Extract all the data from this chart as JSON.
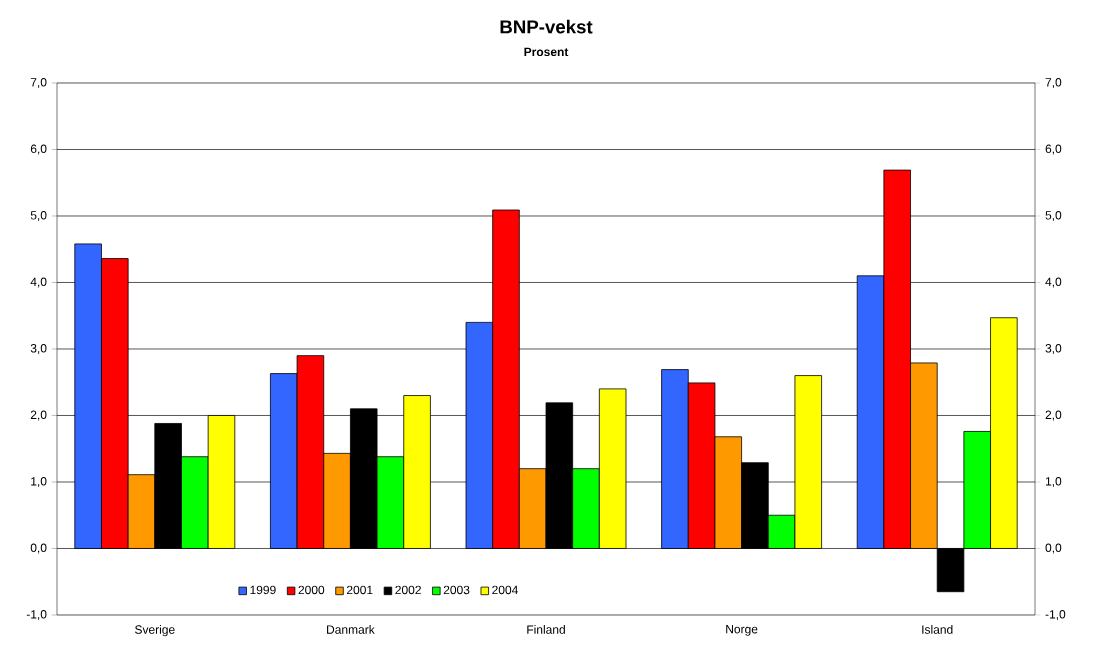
{
  "chart_data": {
    "type": "bar",
    "title": "BNP-vekst",
    "subtitle": "Prosent",
    "categories": [
      "Sverige",
      "Danmark",
      "Finland",
      "Norge",
      "Island"
    ],
    "series": [
      {
        "name": "1999",
        "color": "#3366ff",
        "values": [
          4.58,
          2.63,
          3.4,
          2.69,
          4.1
        ]
      },
      {
        "name": "2000",
        "color": "#ff0000",
        "values": [
          4.36,
          2.9,
          5.09,
          2.49,
          5.69
        ]
      },
      {
        "name": "2001",
        "color": "#ff9900",
        "values": [
          1.11,
          1.43,
          1.2,
          1.68,
          2.79
        ]
      },
      {
        "name": "2002",
        "color": "#000000",
        "values": [
          1.88,
          2.1,
          2.19,
          1.29,
          -0.65
        ]
      },
      {
        "name": "2003",
        "color": "#00ff00",
        "values": [
          1.38,
          1.38,
          1.2,
          0.5,
          1.76
        ]
      },
      {
        "name": "2004",
        "color": "#ffff00",
        "values": [
          2.0,
          2.3,
          2.4,
          2.6,
          3.47
        ]
      }
    ],
    "ylim": [
      -1,
      7
    ],
    "yticks": [
      {
        "value": -1,
        "label": "-1,0"
      },
      {
        "value": 0,
        "label": "0,0"
      },
      {
        "value": 1,
        "label": "1,0"
      },
      {
        "value": 2,
        "label": "2,0"
      },
      {
        "value": 3,
        "label": "3,0"
      },
      {
        "value": 4,
        "label": "4,0"
      },
      {
        "value": 5,
        "label": "5,0"
      },
      {
        "value": 6,
        "label": "6,0"
      },
      {
        "value": 7,
        "label": "7,0"
      }
    ],
    "y2lim": [
      -1,
      7
    ],
    "y2ticks": [
      {
        "value": -1,
        "label": "-1,0"
      },
      {
        "value": 0,
        "label": "0,0"
      },
      {
        "value": 1,
        "label": "1,0"
      },
      {
        "value": 2,
        "label": "2,0"
      },
      {
        "value": 3,
        "label": "3,0"
      },
      {
        "value": 4,
        "label": "4,0"
      },
      {
        "value": 5,
        "label": "5,0"
      },
      {
        "value": 6,
        "label": "6,0"
      },
      {
        "value": 7,
        "label": "7,0"
      }
    ],
    "grid": "y",
    "legend": "bottom"
  }
}
